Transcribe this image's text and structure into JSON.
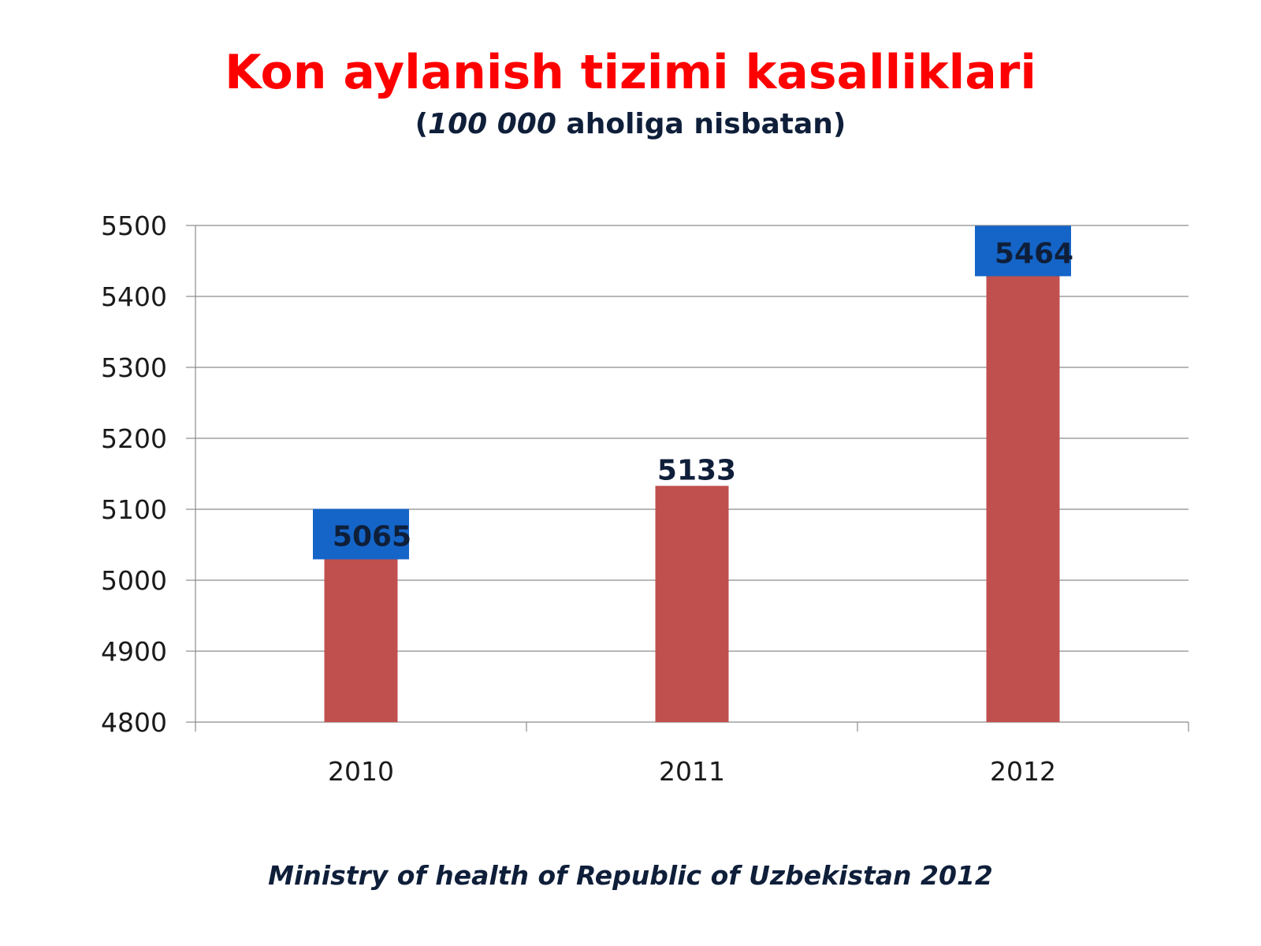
{
  "chart_data": {
    "type": "bar",
    "title": "Kon aylanish tizimi kasalliklari",
    "subtitle_number": "100 000",
    "subtitle_text": " aholiga nisbatan)",
    "subtitle_open": "(",
    "categories": [
      "2010",
      "2011",
      "2012"
    ],
    "values": [
      5065,
      5133,
      5464
    ],
    "data_labels": [
      "5065",
      "5133",
      "5464"
    ],
    "highlighted": [
      true,
      false,
      true
    ],
    "ylim": [
      4800,
      5500
    ],
    "yticks": [
      "4800",
      "4900",
      "5000",
      "5100",
      "5200",
      "5300",
      "5400",
      "5500"
    ],
    "xlabel": "",
    "ylabel": "",
    "grid": true,
    "legend": "none",
    "bar_color": "#c0504d",
    "highlight_color": "#1565c8"
  },
  "source": "Ministry of health of Republic of Uzbekistan 2012"
}
